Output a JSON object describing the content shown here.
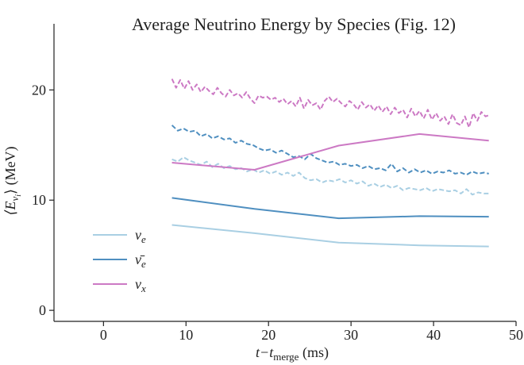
{
  "chart_data": {
    "type": "line",
    "title": "Average Neutrino Energy by Species (Fig. 12)",
    "xlabel": {
      "base": "t−t",
      "sub": "merge",
      "tail": " (ms)"
    },
    "ylabel": {
      "open": "⟨E",
      "sub": "ν",
      "subsub": "i",
      "close": "⟩ (MeV)"
    },
    "xlim": [
      -6,
      50
    ],
    "ylim": [
      -1,
      26
    ],
    "xticks": [
      0,
      10,
      20,
      30,
      40,
      50
    ],
    "yticks": [
      0,
      10,
      20
    ],
    "grid": false,
    "legend_position": "lower-left",
    "series": [
      {
        "name": "ν_e",
        "legend_label": {
          "base": "ν",
          "sub": "e"
        },
        "color": "#a9cfe3",
        "line": {
          "x": [
            8.3,
            18.3,
            28.5,
            38.3,
            46.7
          ],
          "y": [
            7.75,
            7.0,
            6.15,
            5.9,
            5.8
          ]
        },
        "dashed": {
          "x": [
            8.3,
            9,
            9.7,
            10.4,
            11.1,
            11.8,
            12.5,
            13.2,
            13.9,
            14.6,
            15.3,
            16,
            16.7,
            17.4,
            18.1,
            18.8,
            19.5,
            20.2,
            20.9,
            21.6,
            22.3,
            23,
            23.7,
            24.4,
            25.1,
            25.8,
            26.5,
            27.2,
            27.9,
            28.6,
            29.3,
            30,
            30.7,
            31.4,
            32.1,
            32.8,
            33.5,
            34.2,
            34.9,
            35.6,
            36.3,
            37,
            37.7,
            38.4,
            39.1,
            39.8,
            40.5,
            41.2,
            41.9,
            42.6,
            43.3,
            44,
            44.7,
            45.4,
            46.1,
            46.7
          ],
          "y": [
            13.7,
            13.5,
            13.9,
            13.6,
            13.4,
            13.2,
            13.5,
            13.0,
            13.3,
            12.9,
            13.1,
            12.8,
            12.9,
            12.6,
            12.8,
            12.5,
            12.7,
            12.4,
            12.6,
            12.3,
            12.5,
            12.2,
            12.5,
            12.0,
            11.8,
            11.9,
            11.6,
            11.8,
            11.7,
            11.9,
            11.6,
            11.8,
            11.5,
            11.7,
            11.3,
            11.5,
            11.2,
            11.4,
            11.1,
            11.3,
            10.9,
            11.1,
            11.0,
            10.9,
            11.1,
            10.8,
            11.0,
            10.9,
            10.8,
            10.9,
            10.6,
            11.0,
            10.5,
            10.7,
            10.6,
            10.6
          ]
        }
      },
      {
        "name": "ν̄_e",
        "legend_label": {
          "base": "ν̄",
          "sub": "e"
        },
        "color": "#4f8fc0",
        "line": {
          "x": [
            8.3,
            18.3,
            28.5,
            38.3,
            46.7
          ],
          "y": [
            10.2,
            9.2,
            8.35,
            8.55,
            8.5
          ]
        },
        "dashed": {
          "x": [
            8.3,
            9,
            9.7,
            10.4,
            11.1,
            11.8,
            12.5,
            13.2,
            13.9,
            14.6,
            15.3,
            16,
            16.7,
            17.4,
            18.1,
            18.8,
            19.5,
            20.2,
            20.9,
            21.6,
            22.3,
            23,
            23.7,
            24.4,
            25.1,
            25.8,
            26.5,
            27.2,
            27.9,
            28.6,
            29.3,
            30,
            30.7,
            31.4,
            32.1,
            32.8,
            33.5,
            34.2,
            34.9,
            35.6,
            36.3,
            37,
            37.7,
            38.4,
            39.1,
            39.8,
            40.5,
            41.2,
            41.9,
            42.6,
            43.3,
            44,
            44.7,
            45.4,
            46.1,
            46.7
          ],
          "y": [
            16.8,
            16.3,
            16.5,
            16.2,
            16.3,
            15.8,
            16.0,
            15.6,
            15.8,
            15.5,
            15.6,
            15.2,
            15.4,
            15.1,
            15.0,
            14.7,
            14.5,
            14.6,
            14.3,
            14.5,
            14.2,
            13.9,
            14.0,
            13.7,
            14.2,
            13.8,
            13.6,
            13.4,
            13.5,
            13.2,
            13.3,
            13.1,
            13.2,
            12.9,
            13.1,
            12.8,
            12.9,
            12.7,
            13.3,
            12.6,
            12.9,
            12.5,
            12.8,
            12.5,
            12.7,
            12.4,
            12.6,
            12.5,
            12.7,
            12.4,
            12.5,
            12.3,
            12.6,
            12.4,
            12.5,
            12.4
          ]
        }
      },
      {
        "name": "ν_x",
        "legend_label": {
          "base": "ν",
          "sub": "x"
        },
        "color": "#cc79c4",
        "line": {
          "x": [
            8.3,
            18.3,
            28.5,
            38.3,
            46.7
          ],
          "y": [
            13.4,
            12.75,
            14.95,
            16.0,
            15.4
          ]
        },
        "dashed": {
          "x": [
            8.3,
            8.8,
            9.3,
            9.8,
            10.3,
            10.8,
            11.3,
            11.8,
            12.3,
            12.8,
            13.3,
            13.8,
            14.3,
            14.8,
            15.3,
            15.8,
            16.3,
            16.8,
            17.3,
            17.8,
            18.3,
            18.8,
            19.3,
            19.8,
            20.3,
            20.8,
            21.3,
            21.8,
            22.3,
            22.8,
            23.3,
            23.8,
            24.3,
            24.8,
            25.3,
            25.8,
            26.3,
            26.8,
            27.3,
            27.8,
            28.3,
            28.8,
            29.3,
            29.8,
            30.3,
            30.8,
            31.3,
            31.8,
            32.3,
            32.8,
            33.3,
            33.8,
            34.3,
            34.8,
            35.3,
            35.8,
            36.3,
            36.8,
            37.3,
            37.8,
            38.3,
            38.8,
            39.3,
            39.8,
            40.3,
            40.8,
            41.3,
            41.8,
            42.3,
            42.8,
            43.3,
            43.8,
            44.3,
            44.8,
            45.3,
            45.8,
            46.3,
            46.7
          ],
          "y": [
            21.0,
            20.2,
            20.9,
            20.1,
            20.8,
            20.0,
            20.5,
            19.8,
            20.3,
            19.9,
            19.6,
            20.2,
            19.7,
            19.4,
            20.0,
            19.5,
            19.7,
            19.3,
            19.8,
            19.2,
            18.8,
            19.5,
            19.3,
            19.4,
            19.1,
            19.3,
            18.9,
            19.2,
            18.7,
            19.0,
            18.5,
            19.3,
            18.3,
            19.1,
            18.6,
            18.8,
            18.2,
            19.0,
            19.4,
            18.9,
            19.2,
            18.8,
            18.5,
            19.0,
            18.7,
            18.2,
            18.9,
            18.4,
            18.7,
            18.1,
            18.6,
            18.0,
            18.5,
            17.8,
            18.4,
            17.9,
            18.2,
            17.5,
            18.3,
            17.6,
            18.1,
            17.4,
            18.2,
            17.3,
            17.9,
            17.2,
            17.6,
            16.9,
            17.8,
            17.0,
            16.8,
            17.6,
            16.6,
            17.9,
            17.2,
            18.0,
            17.6,
            17.7
          ]
        }
      }
    ]
  }
}
